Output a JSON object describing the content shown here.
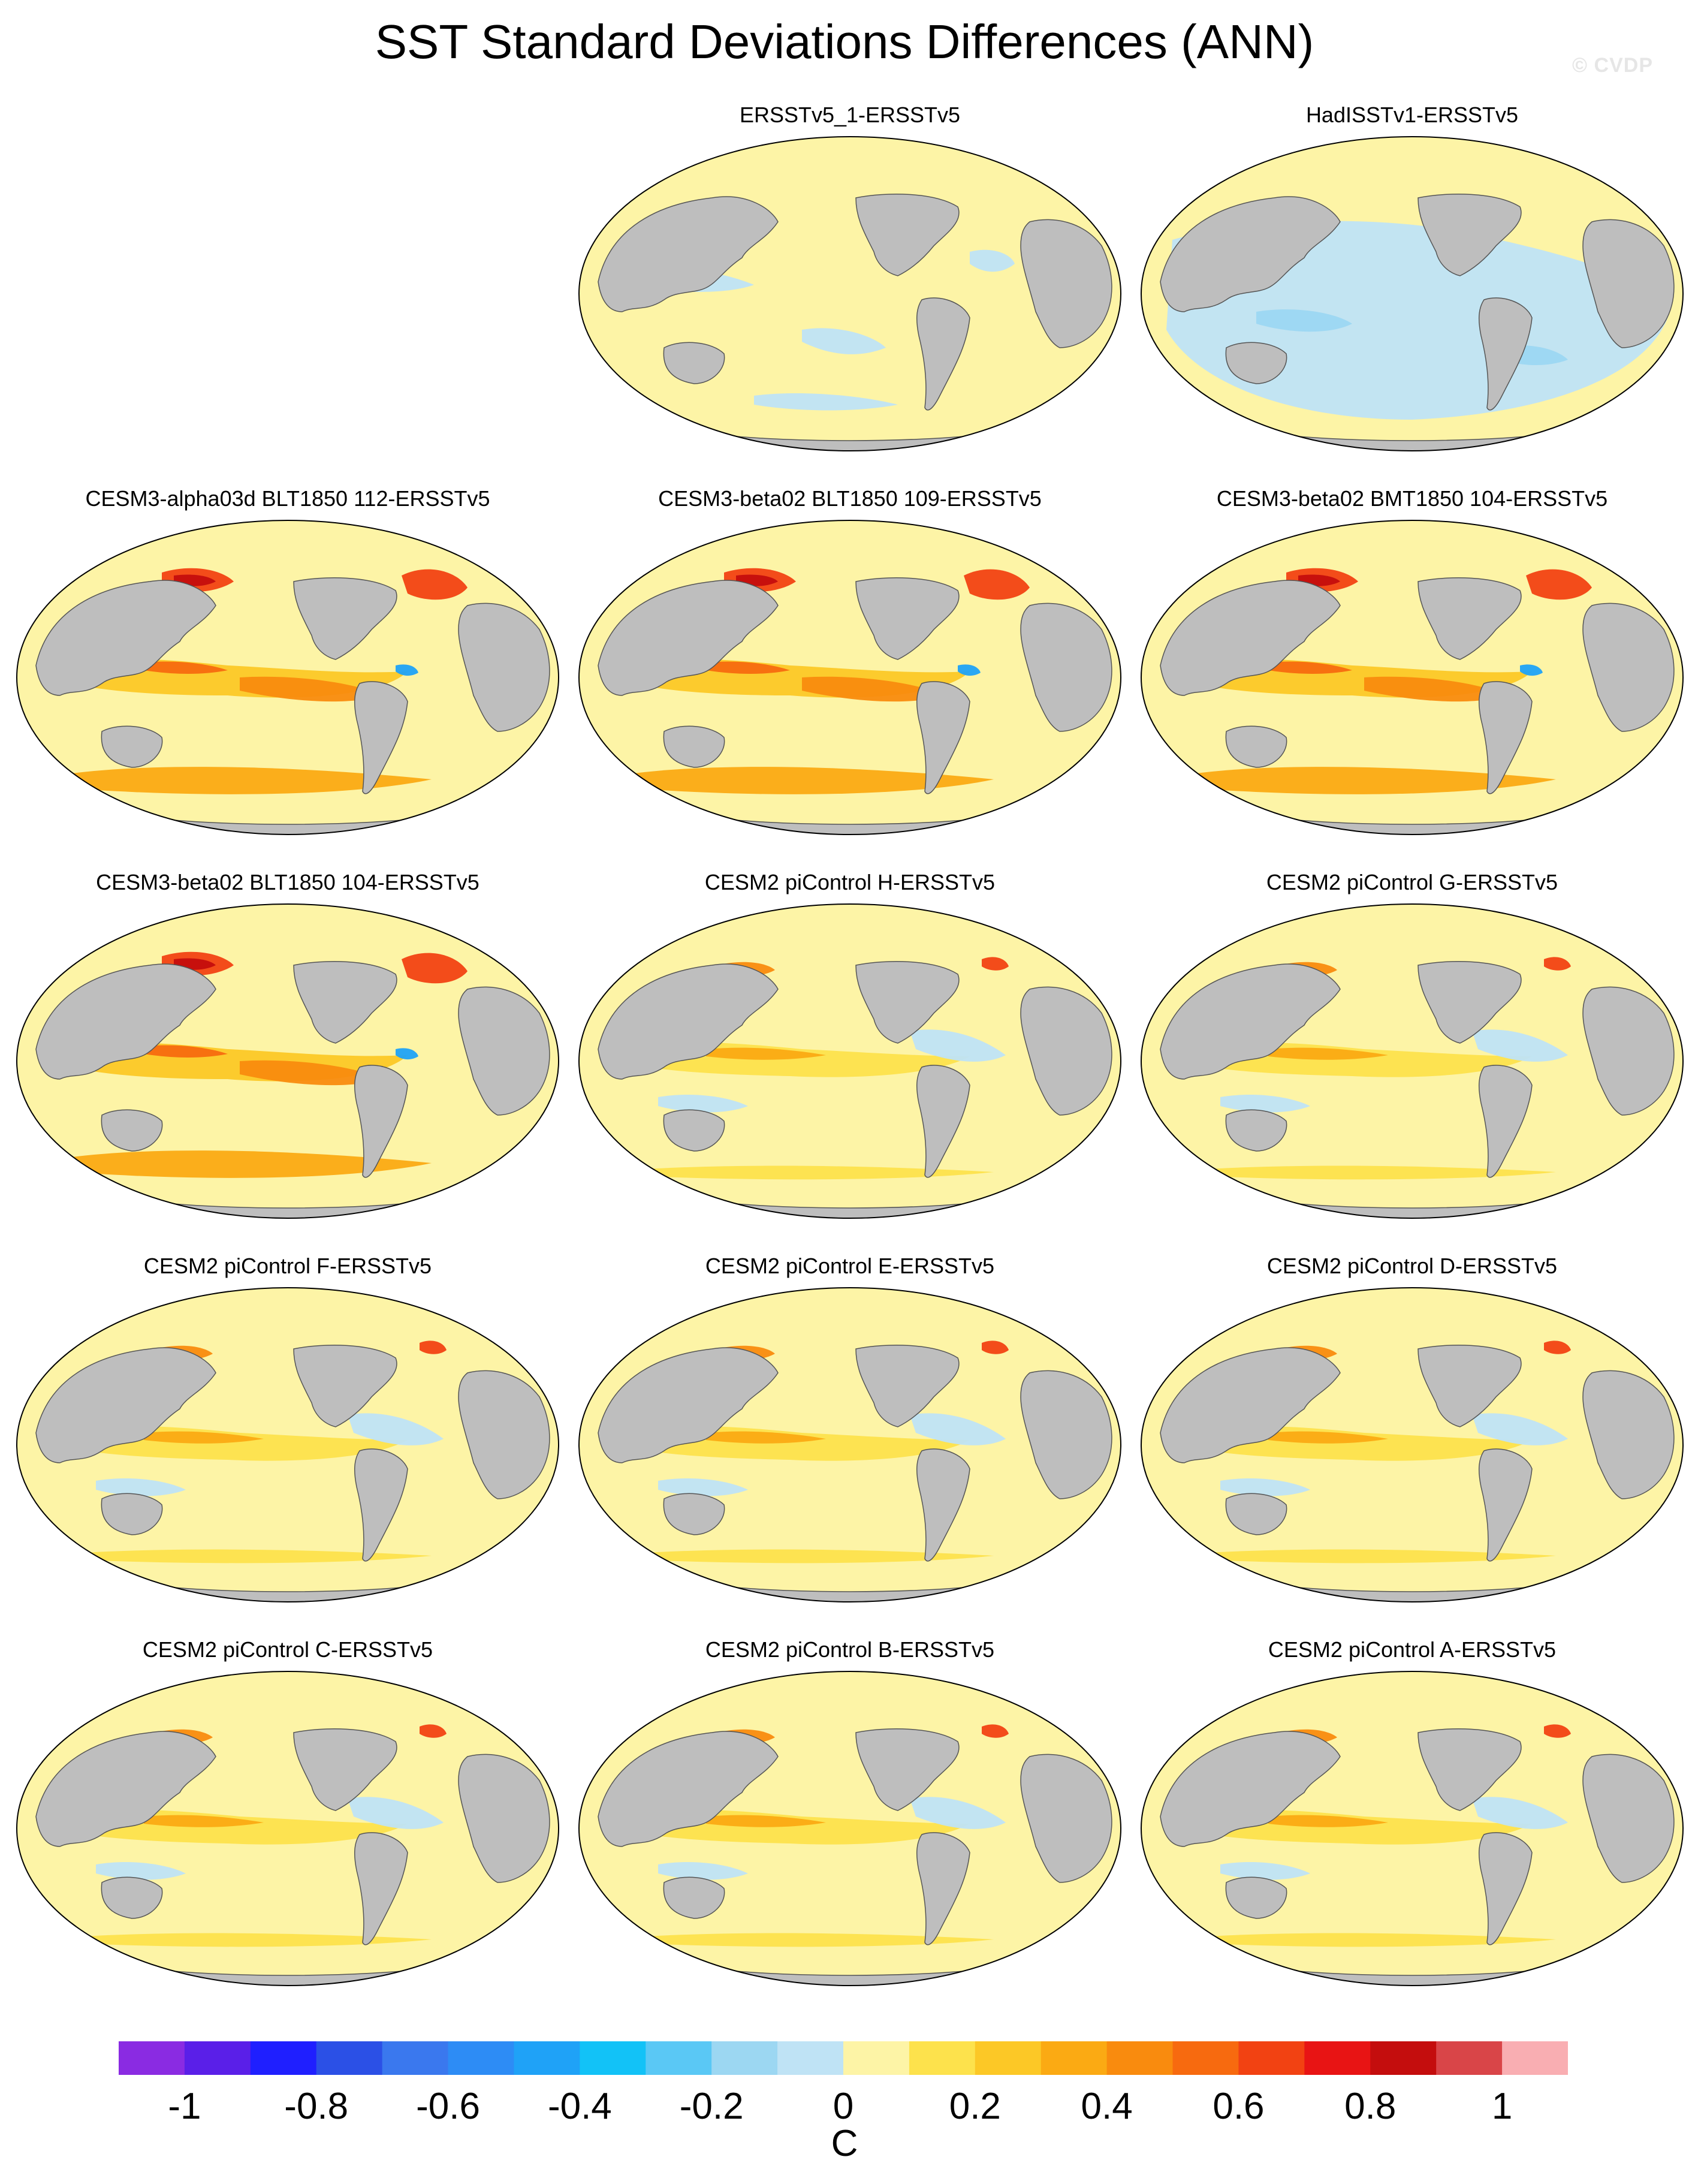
{
  "title": "SST Standard Deviations Differences (ANN)",
  "watermark": "© CVDP",
  "colors": {
    "land": "#bebebe",
    "coast": "#555555",
    "outline": "#000000",
    "ocean_default": "#fdf4a6"
  },
  "panels": [
    {
      "title": "ERSSTv5_1-ERSSTv5",
      "pattern": "near-zero-mixed"
    },
    {
      "title": "HadISSTv1-ERSSTv5",
      "pattern": "negative-dominant"
    },
    {
      "title": "CESM3-alpha03d BLT1850 112-ERSSTv5",
      "pattern": "strong-positive"
    },
    {
      "title": "CESM3-beta02 BLT1850 109-ERSSTv5",
      "pattern": "strong-positive"
    },
    {
      "title": "CESM3-beta02 BMT1850 104-ERSSTv5",
      "pattern": "strong-positive"
    },
    {
      "title": "CESM3-beta02 BLT1850 104-ERSSTv5",
      "pattern": "strong-positive"
    },
    {
      "title": "CESM2 piControl H-ERSSTv5",
      "pattern": "moderate-positive"
    },
    {
      "title": "CESM2 piControl G-ERSSTv5",
      "pattern": "moderate-positive"
    },
    {
      "title": "CESM2 piControl F-ERSSTv5",
      "pattern": "moderate-positive"
    },
    {
      "title": "CESM2 piControl E-ERSSTv5",
      "pattern": "moderate-positive"
    },
    {
      "title": "CESM2 piControl D-ERSSTv5",
      "pattern": "moderate-positive"
    },
    {
      "title": "CESM2 piControl C-ERSSTv5",
      "pattern": "moderate-positive"
    },
    {
      "title": "CESM2 piControl B-ERSSTv5",
      "pattern": "moderate-positive"
    },
    {
      "title": "CESM2 piControl A-ERSSTv5",
      "pattern": "moderate-positive"
    }
  ],
  "colorbar": {
    "units": "C",
    "min": -1.1,
    "max": 1.1,
    "step": 0.1,
    "colors": [
      "#8a2be2",
      "#5a1fe8",
      "#1f1fff",
      "#2b50e6",
      "#3a78ee",
      "#2d8cf5",
      "#1fa2f7",
      "#12c2f7",
      "#5ac8f5",
      "#9cd7f2",
      "#bfe3f5",
      "#fdf4a6",
      "#fde24c",
      "#fcc826",
      "#fbaa13",
      "#f98b0e",
      "#f76a0f",
      "#f24212",
      "#e81414",
      "#c40d0d",
      "#d94548",
      "#f9aeb2"
    ],
    "tick_labels": [
      "-1",
      "-0.8",
      "-0.6",
      "-0.4",
      "-0.2",
      "0",
      "0.2",
      "0.4",
      "0.6",
      "0.8",
      "1"
    ],
    "tick_values": [
      -1,
      -0.8,
      -0.6,
      -0.4,
      -0.2,
      0,
      0.2,
      0.4,
      0.6,
      0.8,
      1
    ]
  }
}
